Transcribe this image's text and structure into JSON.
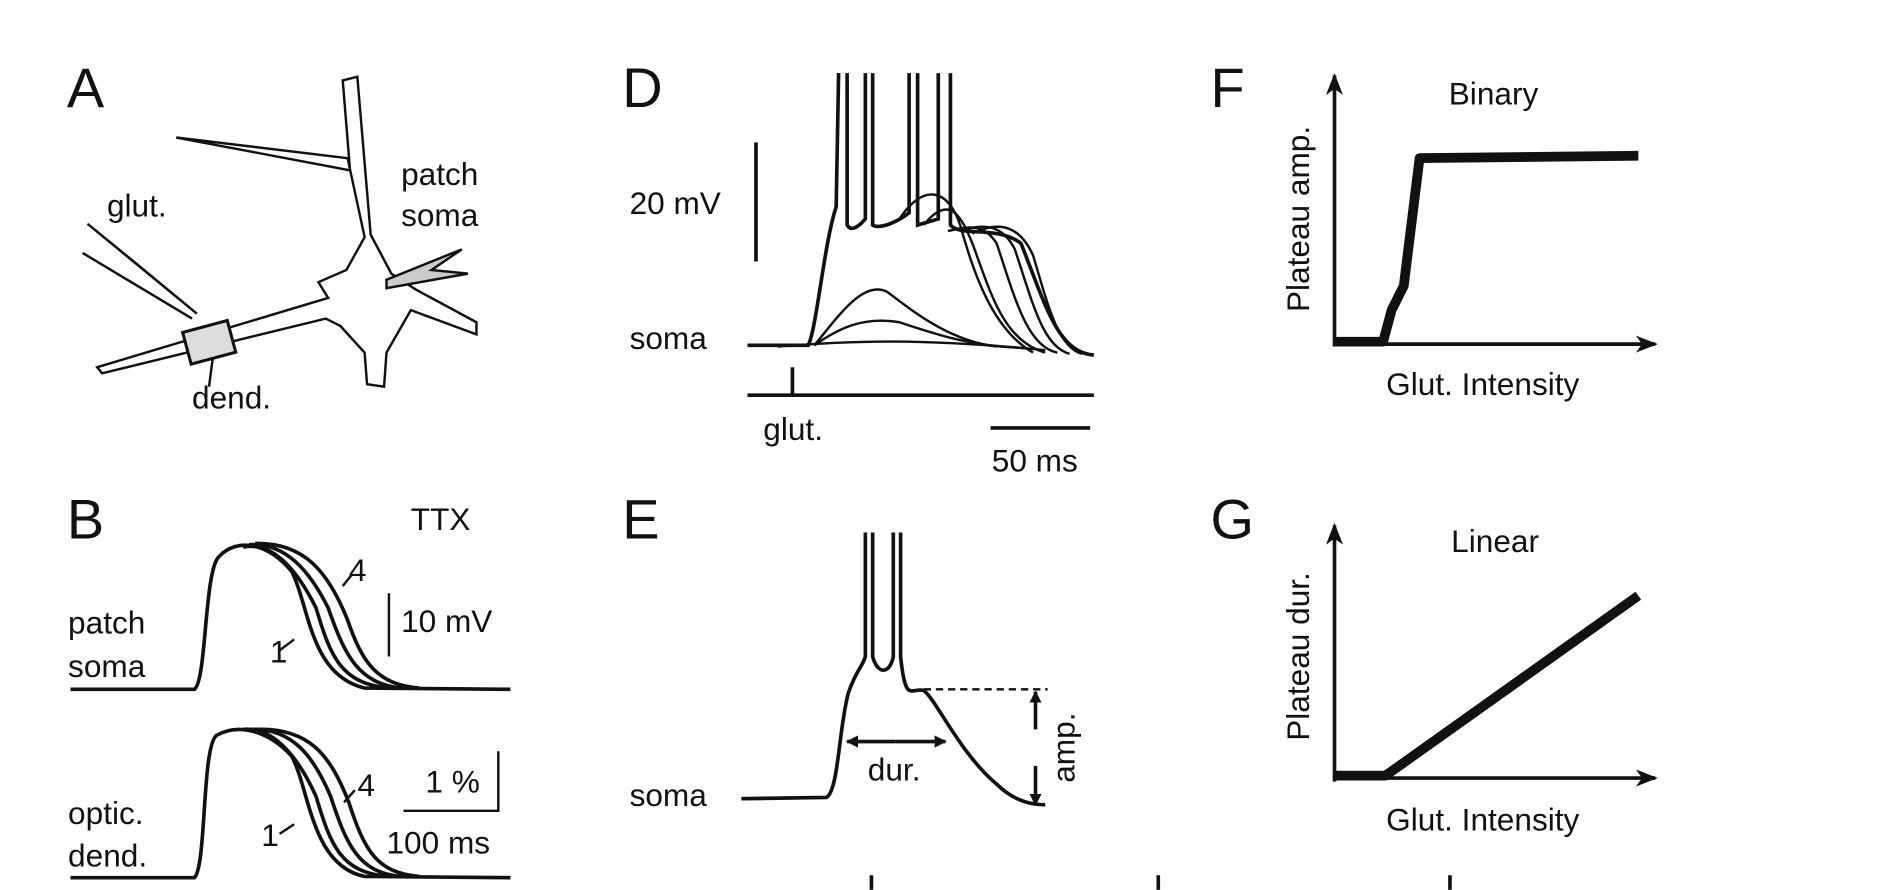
{
  "panels": {
    "A": {
      "label": "A",
      "pipette": "glut.",
      "patch": [
        "patch",
        "soma"
      ],
      "dendrite": "dend."
    },
    "B": {
      "label": "B",
      "condition": "TTX",
      "soma_trace": [
        "patch",
        "soma"
      ],
      "soma_first": "1",
      "soma_last": "4",
      "soma_scale": "10 mV",
      "dend_trace": [
        "optic.",
        "dend."
      ],
      "dend_first": "1",
      "dend_last": "4",
      "dend_scale": "1 %",
      "time_scale": "100 ms"
    },
    "D": {
      "label": "D",
      "voltage_scale": "20 mV",
      "trace": "soma",
      "stimulus": "glut.",
      "time_scale": "50 ms"
    },
    "E": {
      "label": "E",
      "trace": "soma",
      "duration": "dur.",
      "amplitude": "amp."
    },
    "F": {
      "label": "F",
      "title": "Binary",
      "y_label": "Plateau amp.",
      "x_label": "Glut. Intensity"
    },
    "G": {
      "label": "G",
      "title": "Linear",
      "y_label": "Plateau dur.",
      "x_label": "Glut. Intensity"
    }
  }
}
